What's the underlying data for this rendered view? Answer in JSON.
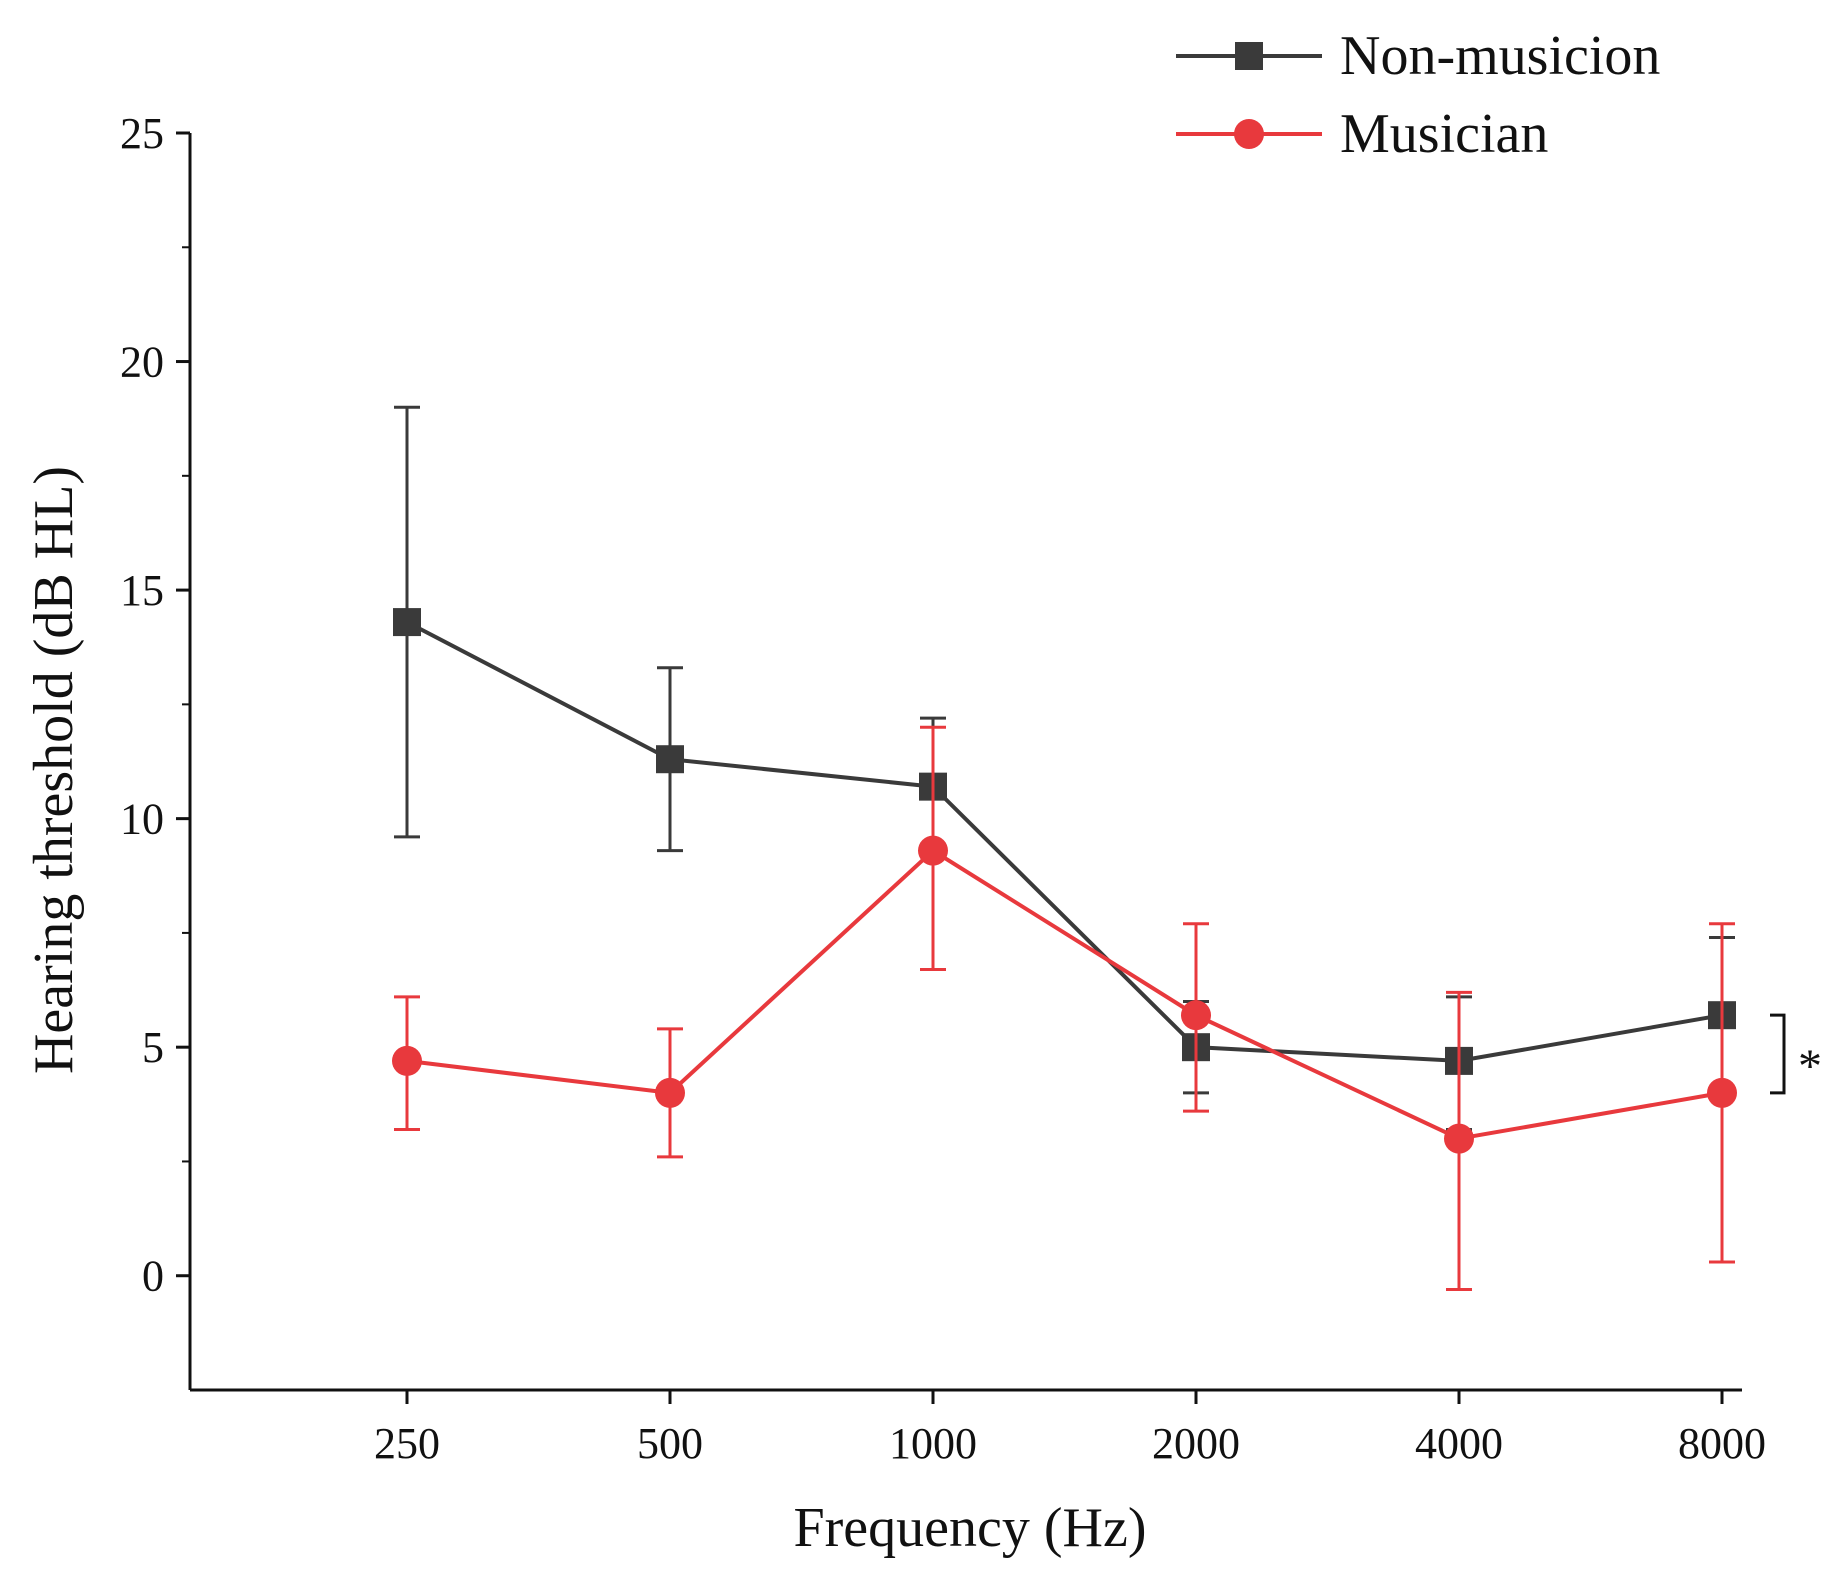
{
  "chart_data": {
    "type": "line",
    "title": "",
    "xlabel": "Frequency (Hz)",
    "ylabel": "Hearing threshold (dB HL)",
    "categories": [
      "250",
      "500",
      "1000",
      "2000",
      "4000",
      "8000"
    ],
    "ylim": [
      -2.5,
      25
    ],
    "yticks": [
      0,
      5,
      10,
      15,
      20,
      25
    ],
    "ytick_labels": [
      "0",
      "5",
      "10",
      "15",
      "20",
      "25"
    ],
    "legend_position": "top-right",
    "series": [
      {
        "name": "Non-musicion",
        "color": "#3a3a3a",
        "marker": "square",
        "values": [
          14.3,
          11.3,
          10.7,
          5.0,
          4.7,
          5.7
        ],
        "error_low": [
          9.6,
          9.3,
          9.2,
          4.0,
          3.2,
          4.0
        ],
        "error_high": [
          19.0,
          13.3,
          12.2,
          6.0,
          6.1,
          7.4
        ]
      },
      {
        "name": "Musician",
        "color": "#e8393d",
        "marker": "circle",
        "values": [
          4.7,
          4.0,
          9.3,
          5.7,
          3.0,
          4.0
        ],
        "error_low": [
          3.2,
          2.6,
          6.7,
          3.6,
          -0.3,
          0.3
        ],
        "error_high": [
          6.1,
          5.4,
          12.0,
          7.7,
          6.2,
          7.7
        ]
      }
    ],
    "annotations": [
      {
        "text": "*",
        "between_series": [
          "Non-musicion",
          "Musician"
        ],
        "at_category": "8000"
      }
    ]
  }
}
